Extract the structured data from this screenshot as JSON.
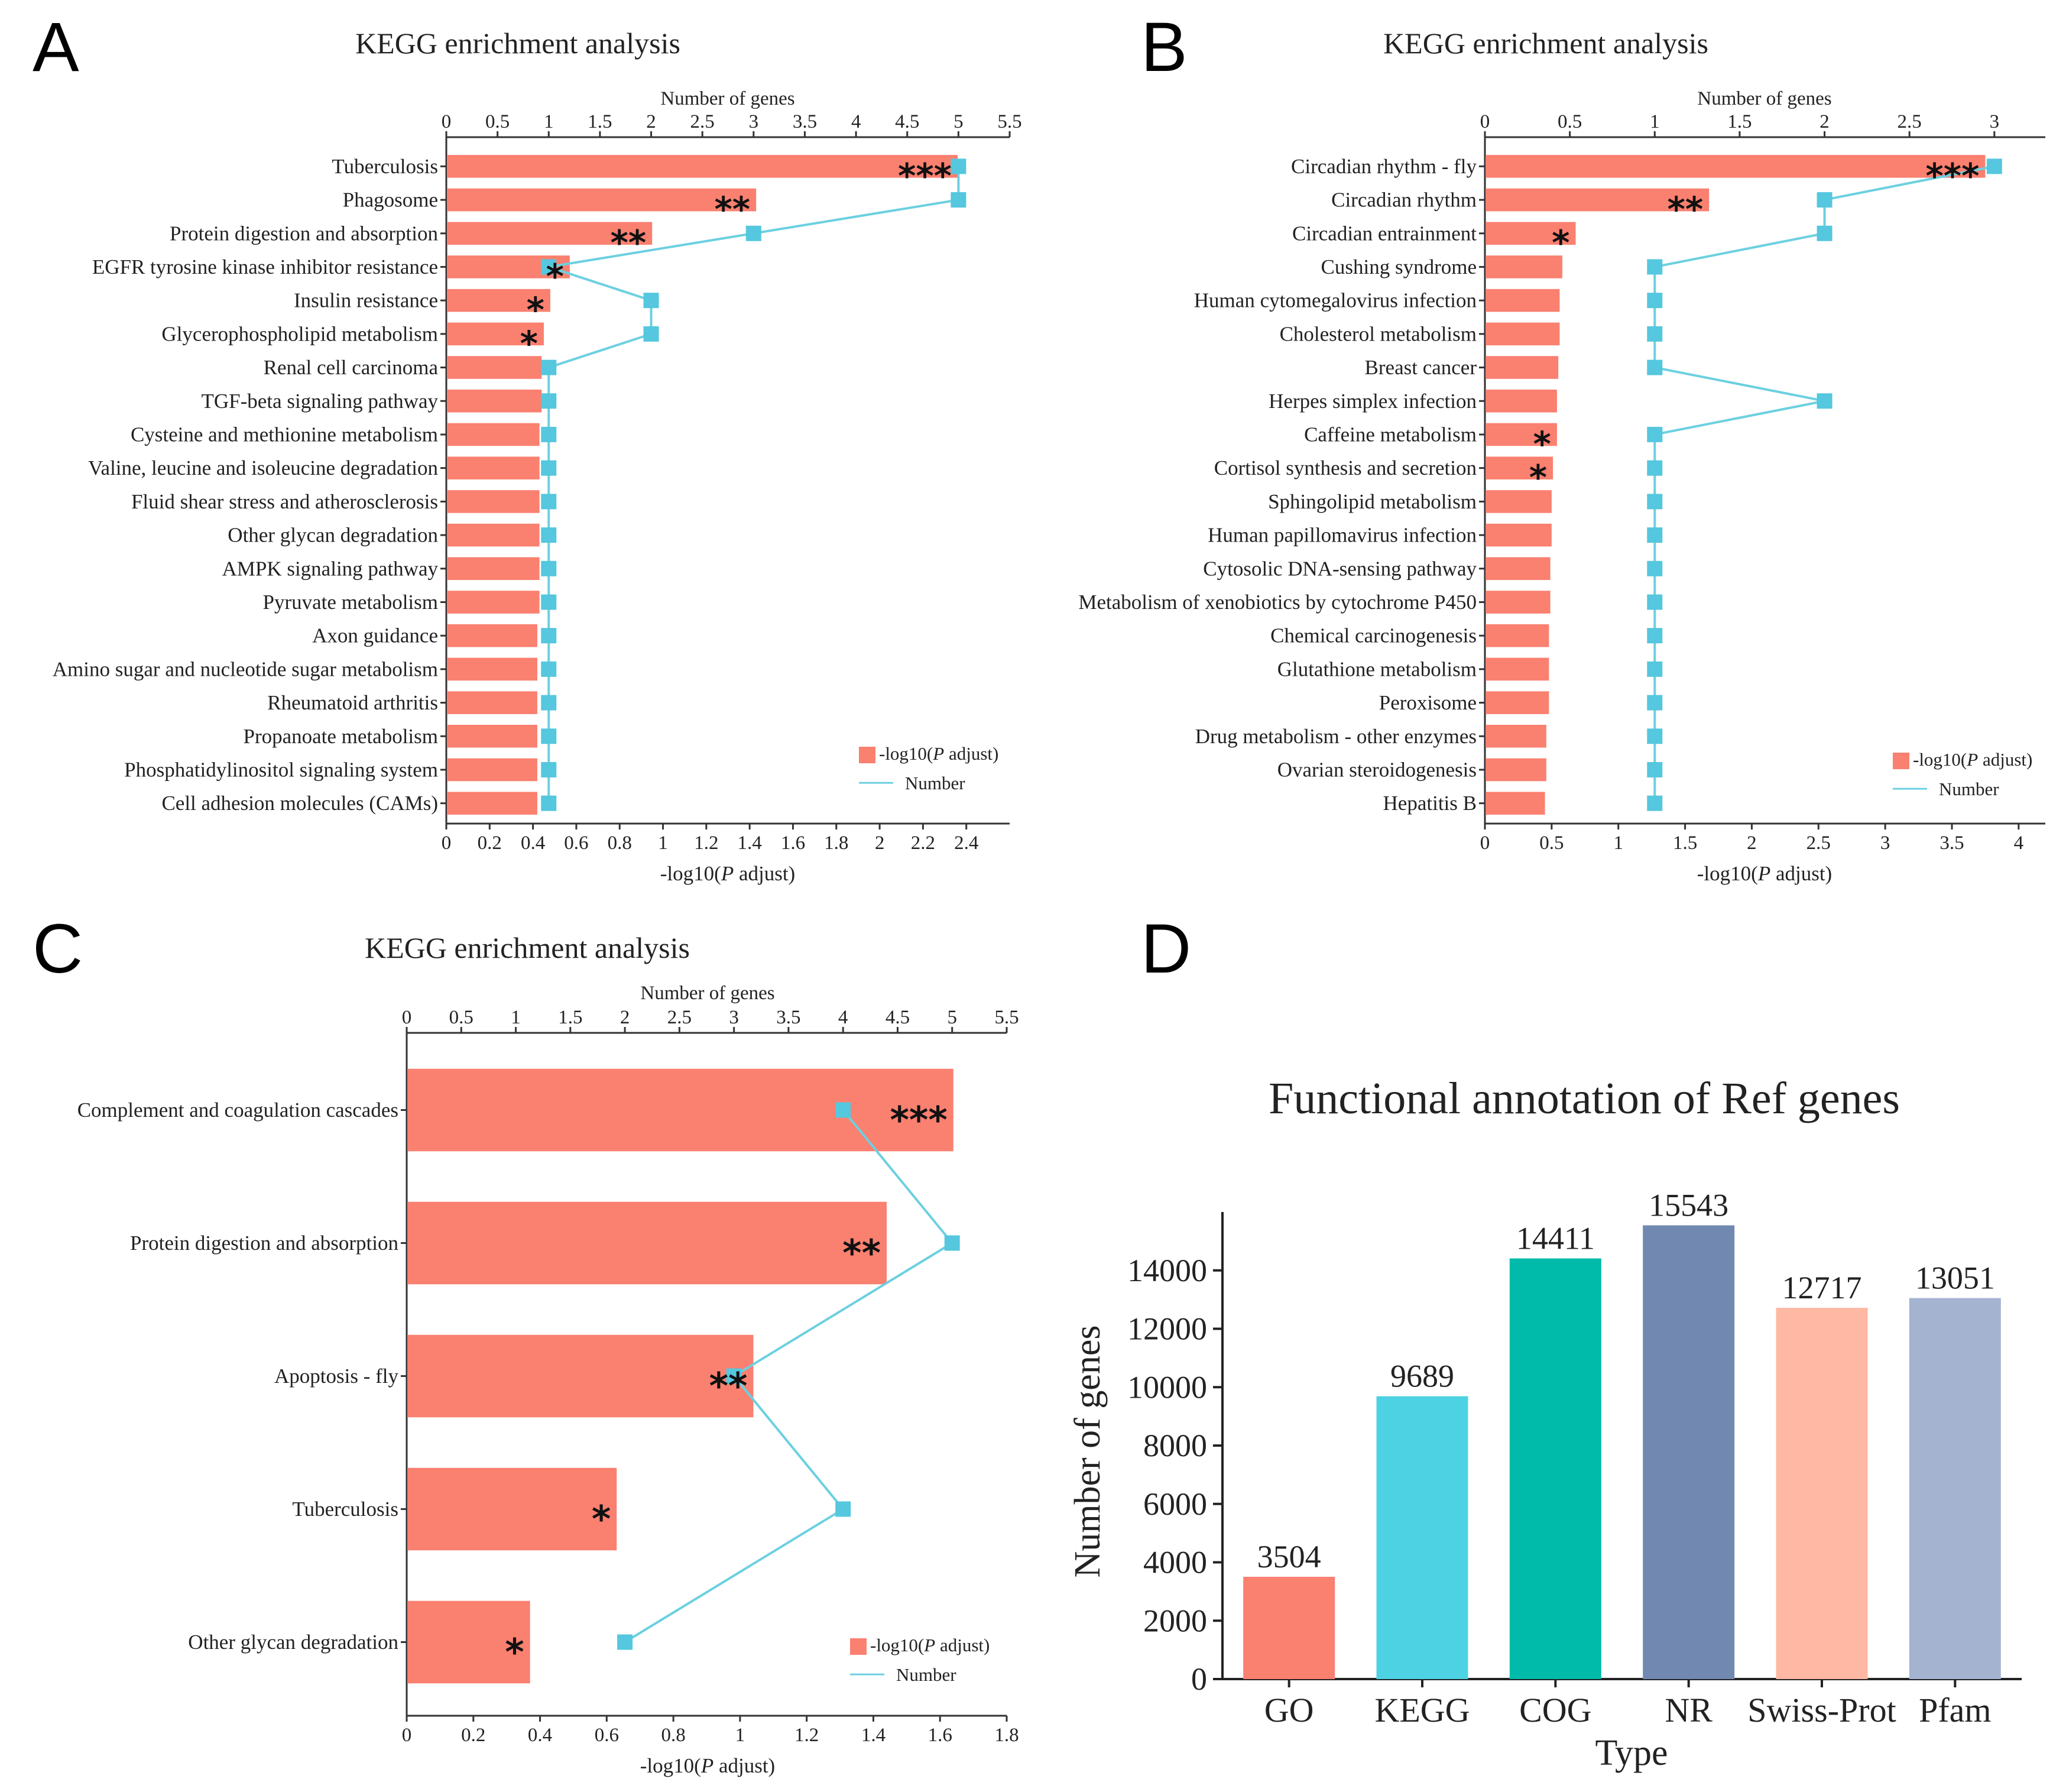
{
  "chart_data": [
    {
      "panel": "A",
      "type": "bar",
      "title": "KEGG enrichment analysis",
      "top_axis_label": "Number of genes",
      "bottom_axis_label": "-log10(P adjust)",
      "top_range": [
        0,
        5.5
      ],
      "top_ticks": [
        "0",
        "0.5",
        "1",
        "1.5",
        "2",
        "2.5",
        "3",
        "3.5",
        "4",
        "4.5",
        "5",
        "5.5"
      ],
      "bottom_range": [
        0,
        2.6
      ],
      "bottom_ticks": [
        "0",
        "0.2",
        "0.4",
        "0.6",
        "0.8",
        "1",
        "1.2",
        "1.4",
        "1.6",
        "1.8",
        "2",
        "2.2",
        "2.4"
      ],
      "categories": [
        "Tuberculosis",
        "Phagosome",
        "Protein digestion and absorption",
        "EGFR tyrosine kinase inhibitor resistance",
        "Insulin resistance",
        "Glycerophospholipid metabolism",
        "Renal cell carcinoma",
        "TGF-beta signaling pathway",
        "Cysteine and methionine metabolism",
        "Valine, leucine and isoleucine degradation",
        "Fluid shear stress and atherosclerosis",
        "Other glycan degradation",
        "AMPK signaling pathway",
        "Pyruvate metabolism",
        "Axon guidance",
        "Amino sugar and nucleotide sugar metabolism",
        "Rheumatoid arthritis",
        "Propanoate metabolism",
        "Phosphatidylinositol signaling system",
        "Cell adhesion molecules (CAMs)"
      ],
      "series": [
        {
          "name": "-log10(P adjust)",
          "values": [
            2.36,
            1.43,
            0.95,
            0.57,
            0.48,
            0.45,
            0.44,
            0.44,
            0.43,
            0.43,
            0.43,
            0.43,
            0.43,
            0.43,
            0.42,
            0.42,
            0.42,
            0.42,
            0.42,
            0.42
          ]
        },
        {
          "name": "Number",
          "values": [
            5,
            5,
            3,
            1,
            2,
            2,
            1,
            1,
            1,
            1,
            1,
            1,
            1,
            1,
            1,
            1,
            1,
            1,
            1,
            1
          ]
        }
      ],
      "significance": [
        "***",
        "**",
        "**",
        "*",
        "*",
        "*",
        "",
        "",
        "",
        "",
        "",
        "",
        "",
        "",
        "",
        "",
        "",
        "",
        "",
        ""
      ],
      "legend": [
        "-log10(P adjust)",
        "Number"
      ]
    },
    {
      "panel": "B",
      "type": "bar",
      "title": "KEGG enrichment analysis",
      "top_axis_label": "Number of genes",
      "bottom_axis_label": "-log10(P adjust)",
      "top_range": [
        0,
        3.3
      ],
      "top_ticks": [
        "0",
        "0.5",
        "1",
        "1.5",
        "2",
        "2.5",
        "3"
      ],
      "bottom_range": [
        0,
        4.2
      ],
      "bottom_ticks": [
        "0",
        "0.5",
        "1",
        "1.5",
        "2",
        "2.5",
        "3",
        "3.5",
        "4"
      ],
      "categories": [
        "Circadian rhythm - fly",
        "Circadian rhythm",
        "Circadian entrainment",
        "Cushing syndrome",
        "Human cytomegalovirus infection",
        "Cholesterol metabolism",
        "Breast cancer",
        "Herpes simplex infection",
        "Caffeine metabolism",
        "Cortisol synthesis and secretion",
        "Sphingolipid metabolism",
        "Human papillomavirus infection",
        "Cytosolic DNA-sensing pathway",
        "Metabolism of xenobiotics by cytochrome P450",
        "Chemical carcinogenesis",
        "Glutathione metabolism",
        "Peroxisome",
        "Drug metabolism - other enzymes",
        "Ovarian steroidogenesis",
        "Hepatitis B"
      ],
      "series": [
        {
          "name": "-log10(P adjust)",
          "values": [
            3.75,
            1.68,
            0.68,
            0.58,
            0.56,
            0.56,
            0.55,
            0.54,
            0.54,
            0.51,
            0.5,
            0.5,
            0.49,
            0.49,
            0.48,
            0.48,
            0.48,
            0.46,
            0.46,
            0.45
          ]
        },
        {
          "name": "Number",
          "values": [
            3,
            2,
            2,
            1,
            1,
            1,
            1,
            2,
            1,
            1,
            1,
            1,
            1,
            1,
            1,
            1,
            1,
            1,
            1,
            1
          ]
        }
      ],
      "significance": [
        "***",
        "**",
        "*",
        "",
        "",
        "",
        "",
        "",
        "*",
        "*",
        "",
        "",
        "",
        "",
        "",
        "",
        "",
        "",
        "",
        ""
      ],
      "legend": [
        "-log10(P adjust)",
        "Number"
      ]
    },
    {
      "panel": "C",
      "type": "bar",
      "title": "KEGG enrichment analysis",
      "top_axis_label": "Number of genes",
      "bottom_axis_label": "-log10(P adjust)",
      "top_range": [
        0,
        5.5
      ],
      "top_ticks": [
        "0",
        "0.5",
        "1",
        "1.5",
        "2",
        "2.5",
        "3",
        "3.5",
        "4",
        "4.5",
        "5",
        "5.5"
      ],
      "bottom_range": [
        0,
        1.8
      ],
      "bottom_ticks": [
        "0",
        "0.2",
        "0.4",
        "0.6",
        "0.8",
        "1",
        "1.2",
        "1.4",
        "1.6",
        "1.8"
      ],
      "categories": [
        "Complement and coagulation cascades",
        "Protein digestion and absorption",
        "Apoptosis - fly",
        "Tuberculosis",
        "Other glycan degradation"
      ],
      "series": [
        {
          "name": "-log10(P adjust)",
          "values": [
            1.64,
            1.44,
            1.04,
            0.63,
            0.37
          ]
        },
        {
          "name": "Number",
          "values": [
            4,
            5,
            3,
            4,
            2
          ]
        }
      ],
      "significance": [
        "***",
        "**",
        "**",
        "*",
        "*"
      ],
      "legend": [
        "-log10(P adjust)",
        "Number"
      ]
    },
    {
      "panel": "D",
      "type": "bar",
      "title": "Functional annotation of Ref genes",
      "xlabel": "Type",
      "ylabel": "Number of genes",
      "ylim": [
        0,
        16000
      ],
      "yticks": [
        "0",
        "2000",
        "4000",
        "6000",
        "8000",
        "10000",
        "12000",
        "14000"
      ],
      "categories": [
        "GO",
        "KEGG",
        "COG",
        "NR",
        "Swiss-Prot",
        "Pfam"
      ],
      "values": [
        3504,
        9689,
        14411,
        15543,
        12717,
        13051
      ],
      "value_labels": [
        "3504",
        "9689",
        "14411",
        "15543",
        "12717",
        "13051"
      ],
      "colors": [
        "#FA8070",
        "#4DD2E3",
        "#00BBA9",
        "#7189B1",
        "#FFB8A4",
        "#A4B3D0"
      ]
    }
  ],
  "colors": {
    "bar": "#FA8070",
    "line": "#6CD0E0",
    "marker": "#55C7DE",
    "axis": "#333333"
  }
}
